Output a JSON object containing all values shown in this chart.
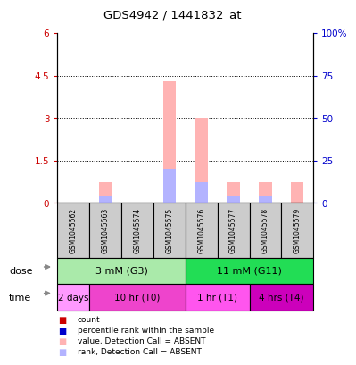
{
  "title": "GDS4942 / 1441832_at",
  "samples": [
    "GSM1045562",
    "GSM1045563",
    "GSM1045574",
    "GSM1045575",
    "GSM1045576",
    "GSM1045577",
    "GSM1045578",
    "GSM1045579"
  ],
  "pink_values": [
    0,
    0.75,
    0,
    4.3,
    3.0,
    0.75,
    0.75,
    0.75
  ],
  "blue_values_pct": [
    0,
    4,
    0,
    20,
    12,
    4,
    4,
    0
  ],
  "ylim_left": [
    0,
    6
  ],
  "ylim_right": [
    0,
    100
  ],
  "yticks_left": [
    0,
    1.5,
    3.0,
    4.5,
    6.0
  ],
  "yticks_right": [
    0,
    25,
    50,
    75,
    100
  ],
  "ytick_labels_left": [
    "0",
    "1.5",
    "3",
    "4.5",
    "6"
  ],
  "ytick_labels_right": [
    "0",
    "25",
    "50",
    "75",
    "100%"
  ],
  "dose_groups": [
    {
      "label": "3 mM (G3)",
      "start": 0,
      "end": 4,
      "color": "#AAEAAA"
    },
    {
      "label": "11 mM (G11)",
      "start": 4,
      "end": 8,
      "color": "#22DD55"
    }
  ],
  "time_groups": [
    {
      "label": "2 days",
      "start": 0,
      "end": 1,
      "color": "#FF99FF"
    },
    {
      "label": "10 hr (T0)",
      "start": 1,
      "end": 4,
      "color": "#EE44CC"
    },
    {
      "label": "1 hr (T1)",
      "start": 4,
      "end": 6,
      "color": "#FF55EE"
    },
    {
      "label": "4 hrs (T4)",
      "start": 6,
      "end": 8,
      "color": "#CC00BB"
    }
  ],
  "legend_items": [
    {
      "color": "#CC0000",
      "label": "count"
    },
    {
      "color": "#0000CC",
      "label": "percentile rank within the sample"
    },
    {
      "color": "#FFB3B3",
      "label": "value, Detection Call = ABSENT"
    },
    {
      "color": "#B3B3FF",
      "label": "rank, Detection Call = ABSENT"
    }
  ],
  "bar_width": 0.4,
  "background_color": "#ffffff",
  "sample_box_color": "#CCCCCC",
  "left_tick_color": "#CC0000",
  "right_tick_color": "#0000CC",
  "grid_yticks": [
    1.5,
    3.0,
    4.5
  ]
}
